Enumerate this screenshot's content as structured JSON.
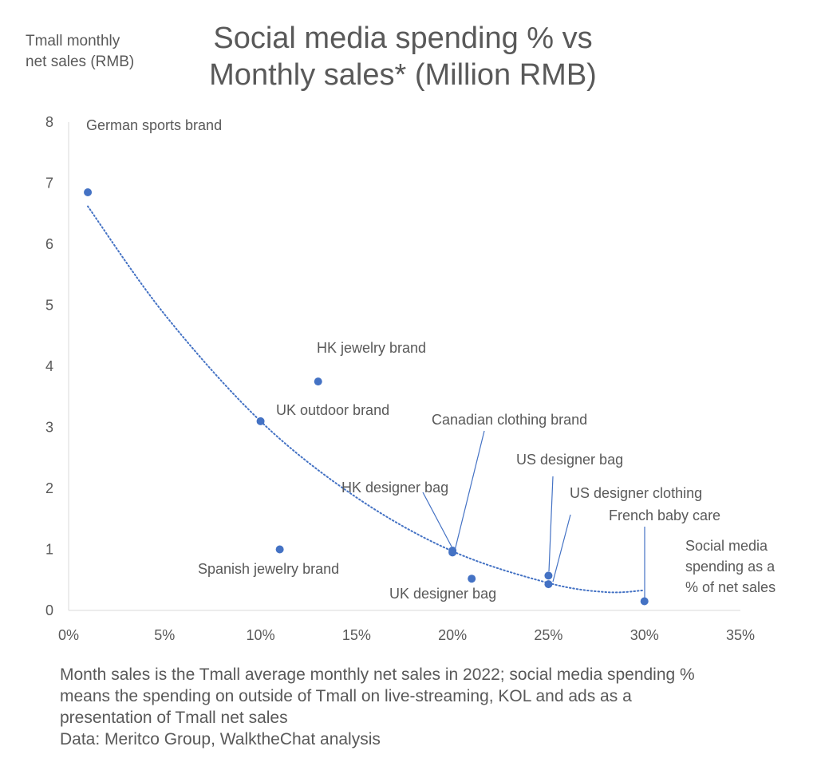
{
  "chart_data": {
    "type": "scatter",
    "title_lines": [
      "Social media spending % vs",
      "Monthly sales* (Million RMB)"
    ],
    "ylabel_lines": [
      "Tmall monthly",
      "net sales (RMB)"
    ],
    "xlabel_lines": [
      "Social media",
      "spending as a",
      "% of net sales"
    ],
    "xlim": [
      0,
      35
    ],
    "ylim": [
      0,
      8
    ],
    "x_ticks": [
      {
        "value": 0,
        "label": "0%"
      },
      {
        "value": 5,
        "label": "5%"
      },
      {
        "value": 10,
        "label": "10%"
      },
      {
        "value": 15,
        "label": "15%"
      },
      {
        "value": 20,
        "label": "20%"
      },
      {
        "value": 25,
        "label": "25%"
      },
      {
        "value": 30,
        "label": "30%"
      },
      {
        "value": 35,
        "label": "35%"
      }
    ],
    "y_ticks": [
      {
        "value": 0,
        "label": "0"
      },
      {
        "value": 1,
        "label": "1"
      },
      {
        "value": 2,
        "label": "2"
      },
      {
        "value": 3,
        "label": "3"
      },
      {
        "value": 4,
        "label": "4"
      },
      {
        "value": 5,
        "label": "5"
      },
      {
        "value": 6,
        "label": "6"
      },
      {
        "value": 7,
        "label": "7"
      },
      {
        "value": 8,
        "label": "8"
      }
    ],
    "points": [
      {
        "label": "German sports brand",
        "x": 1,
        "y": 6.85
      },
      {
        "label": "UK outdoor brand",
        "x": 10,
        "y": 3.1
      },
      {
        "label": "Spanish jewelry brand",
        "x": 11,
        "y": 1.0
      },
      {
        "label": "HK jewelry brand",
        "x": 13,
        "y": 3.75
      },
      {
        "label": "HK designer bag",
        "x": 20,
        "y": 0.98
      },
      {
        "label": "Canadian clothing brand",
        "x": 20,
        "y": 0.95
      },
      {
        "label": "UK designer bag",
        "x": 21,
        "y": 0.52
      },
      {
        "label": "US designer bag",
        "x": 25,
        "y": 0.57
      },
      {
        "label": "US designer clothing",
        "x": 25,
        "y": 0.43
      },
      {
        "label": "French baby care",
        "x": 30,
        "y": 0.15
      }
    ],
    "trendline": {
      "type": "polynomial",
      "style": "dotted",
      "points": [
        [
          1,
          6.62
        ],
        [
          5,
          4.85
        ],
        [
          10,
          3.1
        ],
        [
          15,
          1.85
        ],
        [
          20,
          0.97
        ],
        [
          25,
          0.45
        ],
        [
          28,
          0.3
        ],
        [
          30,
          0.33
        ]
      ]
    },
    "grid": false,
    "marker_color": "#4472C4",
    "text_color": "#595959"
  },
  "footnote": {
    "lines": [
      "Month sales is the Tmall average monthly net sales in 2022; social media spending %",
      "means the spending on outside of Tmall on live-streaming, KOL and ads as a",
      "presentation of Tmall net sales",
      "Data:  Meritco Group, WalktheChat analysis"
    ]
  }
}
